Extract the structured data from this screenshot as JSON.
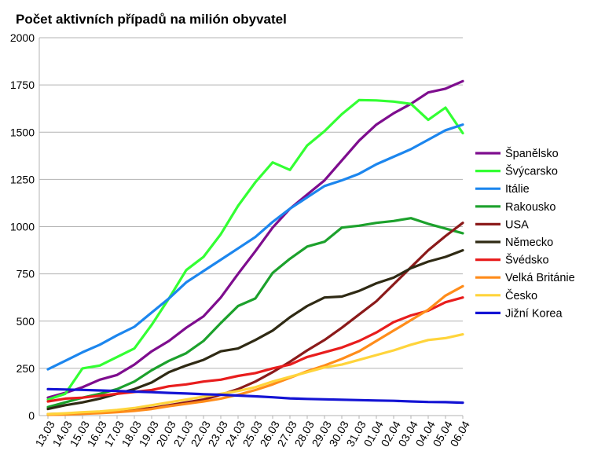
{
  "chart_data": {
    "type": "line",
    "title": "Počet aktivních případů na milión obyvatel",
    "xlabel": "",
    "ylabel": "",
    "ylim": [
      0,
      2000
    ],
    "yticks": [
      0,
      250,
      500,
      750,
      1000,
      1250,
      1500,
      1750,
      2000
    ],
    "grid": "horizontal",
    "legend_position": "right",
    "categories": [
      "13.03",
      "14.03",
      "15.03",
      "16.03",
      "17.03",
      "18.03",
      "19.03",
      "20.03",
      "21.03",
      "22.03",
      "23.03",
      "24.03",
      "25.03",
      "26.03",
      "27.03",
      "28.03",
      "29.03",
      "30.03",
      "31.03",
      "01.04",
      "02.04",
      "03.04",
      "04.04",
      "05.04",
      "06.04"
    ],
    "series": [
      {
        "name": "Španělsko",
        "color": "#7e0d8e",
        "values": [
          95,
          120,
          150,
          190,
          215,
          270,
          340,
          395,
          465,
          525,
          625,
          750,
          870,
          995,
          1095,
          1170,
          1245,
          1350,
          1455,
          1540,
          1600,
          1650,
          1710,
          1730,
          1770
        ]
      },
      {
        "name": "Švýcarsko",
        "color": "#33ff33",
        "values": [
          85,
          115,
          250,
          265,
          310,
          355,
          480,
          620,
          770,
          840,
          960,
          1110,
          1235,
          1340,
          1300,
          1430,
          1505,
          1595,
          1670,
          1668,
          1662,
          1650,
          1565,
          1630,
          1495
        ]
      },
      {
        "name": "Itálie",
        "color": "#1c86ee",
        "values": [
          245,
          290,
          335,
          375,
          425,
          470,
          545,
          620,
          705,
          765,
          825,
          885,
          945,
          1025,
          1095,
          1155,
          1215,
          1245,
          1280,
          1330,
          1370,
          1410,
          1460,
          1510,
          1540
        ]
      },
      {
        "name": "Rakousko",
        "color": "#1ca12c",
        "values": [
          45,
          70,
          95,
          115,
          140,
          180,
          240,
          290,
          330,
          395,
          490,
          580,
          620,
          755,
          830,
          895,
          920,
          995,
          1005,
          1020,
          1030,
          1045,
          1015,
          990,
          965
        ]
      },
      {
        "name": "USA",
        "color": "#8b1a1a",
        "values": [
          8,
          10,
          14,
          18,
          24,
          32,
          40,
          55,
          70,
          85,
          110,
          140,
          180,
          230,
          285,
          345,
          400,
          465,
          535,
          605,
          695,
          785,
          875,
          950,
          1020
        ]
      },
      {
        "name": "Německo",
        "color": "#2f2a14",
        "values": [
          35,
          55,
          70,
          90,
          115,
          140,
          175,
          230,
          265,
          295,
          340,
          355,
          400,
          450,
          520,
          580,
          625,
          630,
          660,
          700,
          730,
          780,
          815,
          840,
          875
        ]
      },
      {
        "name": "Švédsko",
        "color": "#e81d1d",
        "values": [
          75,
          90,
          95,
          105,
          115,
          125,
          135,
          155,
          165,
          180,
          190,
          210,
          225,
          250,
          270,
          310,
          335,
          360,
          395,
          440,
          495,
          530,
          555,
          600,
          625
        ]
      },
      {
        "name": "Velká Británie",
        "color": "#ff8c1a",
        "values": [
          4,
          6,
          9,
          13,
          18,
          25,
          35,
          50,
          62,
          75,
          90,
          110,
          135,
          165,
          200,
          235,
          265,
          300,
          340,
          395,
          450,
          505,
          560,
          635,
          685
        ]
      },
      {
        "name": "Česko",
        "color": "#ffd43b",
        "values": [
          8,
          12,
          18,
          22,
          30,
          40,
          55,
          70,
          85,
          100,
          115,
          130,
          150,
          180,
          205,
          230,
          255,
          270,
          295,
          320,
          345,
          375,
          400,
          410,
          430
        ]
      },
      {
        "name": "Jižní Korea",
        "color": "#1414d4",
        "values": [
          140,
          138,
          136,
          133,
          130,
          127,
          124,
          120,
          117,
          113,
          110,
          106,
          102,
          97,
          91,
          88,
          86,
          84,
          82,
          80,
          78,
          75,
          72,
          71,
          68
        ]
      }
    ]
  }
}
